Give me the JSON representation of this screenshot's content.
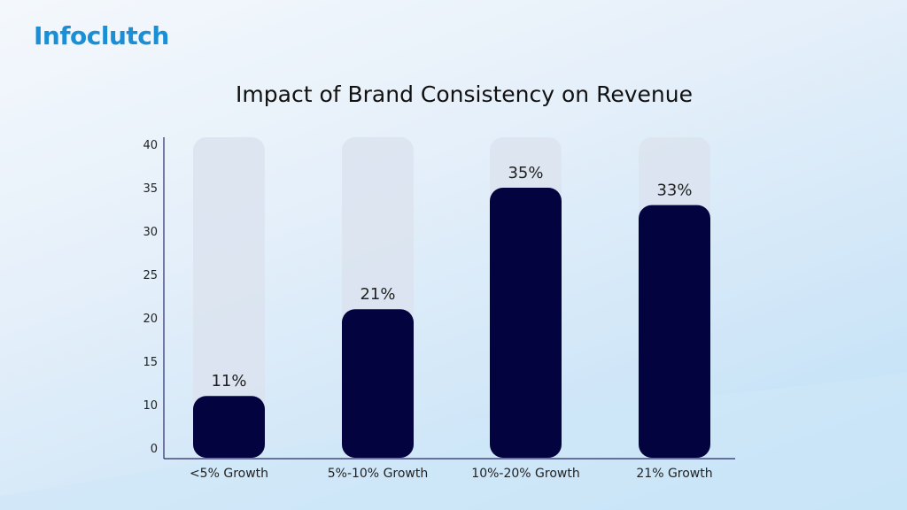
{
  "logo": "Infoclutch",
  "chart_data": {
    "type": "bar",
    "title": "Impact of Brand Consistency on Revenue",
    "categories": [
      "<5% Growth",
      "5%-10% Growth",
      "10%-20% Growth",
      "21% Growth"
    ],
    "values": [
      11,
      21,
      35,
      33
    ],
    "data_labels": [
      "11%",
      "21%",
      "35%",
      "33%"
    ],
    "yticks": [
      0,
      10,
      15,
      20,
      25,
      30,
      35,
      40
    ],
    "ylim": [
      0,
      40
    ],
    "xlabel": "",
    "ylabel": "",
    "grid": false,
    "colors": {
      "bar": "#03033f",
      "track": "#dbe3ef",
      "axis": "#2a2a6a"
    }
  }
}
